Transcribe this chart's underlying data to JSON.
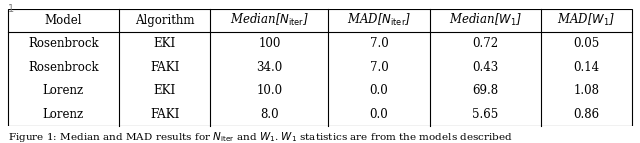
{
  "col_labels": [
    "Model",
    "Algorithm",
    "Median[$N_{\\mathrm{iter}}$]",
    "MAD[$N_{\\mathrm{iter}}$]",
    "Median[$W_1$]",
    "MAD[$W_1$]"
  ],
  "rows": [
    [
      "Rosenbrock",
      "EKI",
      "100",
      "7.0",
      "0.72",
      "0.05"
    ],
    [
      "Rosenbrock",
      "FAKI",
      "34.0",
      "7.0",
      "0.43",
      "0.14"
    ],
    [
      "Lorenz",
      "EKI",
      "10.0",
      "0.0",
      "69.8",
      "1.08"
    ],
    [
      "Lorenz",
      "FAKI",
      "8.0",
      "0.0",
      "5.65",
      "0.86"
    ]
  ],
  "figsize": [
    6.4,
    1.43
  ],
  "dpi": 100,
  "background": "#ffffff",
  "font_size": 8.5,
  "caption_font_size": 7.5,
  "fig_number": "1",
  "caption_text": "Figure 1: Median and MAD results for $N_{\\mathrm{iter}}$ and $W_1$. $W_1$ statistics are from the models described"
}
